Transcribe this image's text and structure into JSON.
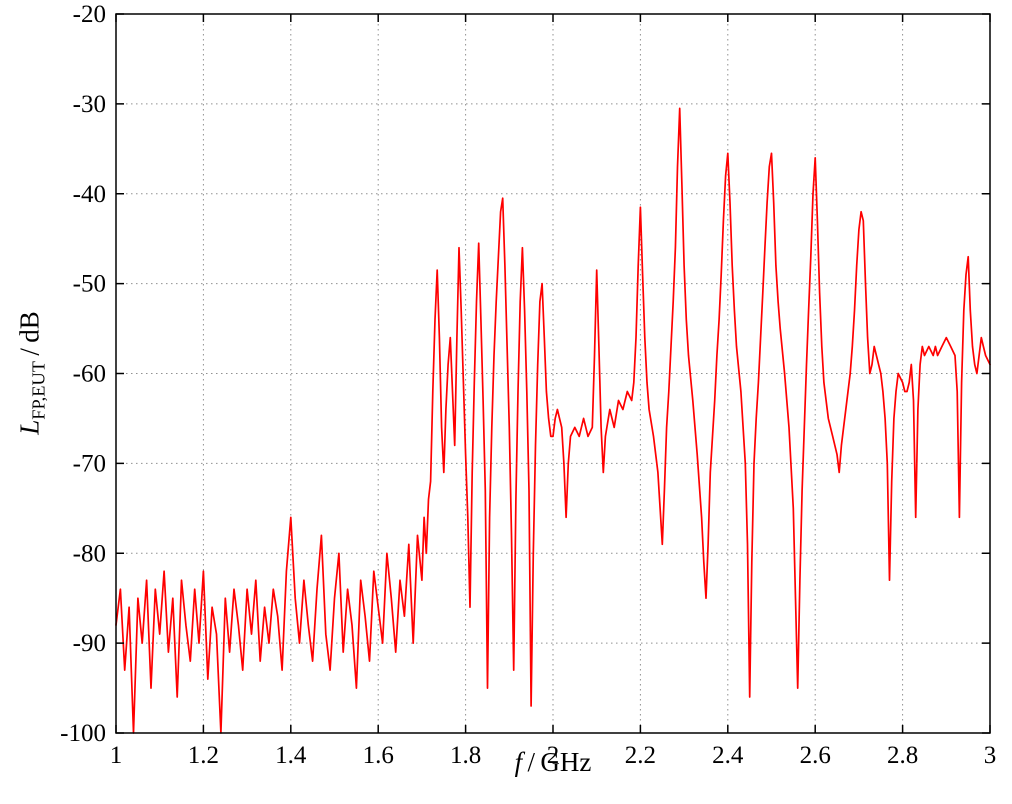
{
  "labels": {
    "y_main": "L",
    "y_sub": "FP,EUT",
    "y_unit": " / dB",
    "x_italic": "f",
    "x_unit": " / GHz"
  },
  "chart_data": {
    "type": "line",
    "title": "",
    "xlabel": "f / GHz",
    "ylabel": "L_FP,EUT / dB",
    "xlim": [
      1,
      3
    ],
    "ylim": [
      -100,
      -20
    ],
    "x_ticks": [
      1,
      1.2,
      1.4,
      1.6,
      1.8,
      2,
      2.2,
      2.4,
      2.6,
      2.8,
      3
    ],
    "x_tick_labels": [
      "1",
      "1.2",
      "1.4",
      "1.6",
      "1.8",
      "2",
      "2.2",
      "2.4",
      "2.6",
      "2.8",
      "3"
    ],
    "y_ticks": [
      -100,
      -90,
      -80,
      -70,
      -60,
      -50,
      -40,
      -30,
      -20
    ],
    "y_tick_labels": [
      "-100",
      "-90",
      "-80",
      "-70",
      "-60",
      "-50",
      "-40",
      "-30",
      "-20"
    ],
    "grid": true,
    "legend": "none",
    "line_color": "#ff0000",
    "grid_color": "#909090",
    "frame_color": "#000000",
    "background": "#ffffff",
    "series": [
      {
        "name": "L_FP,EUT",
        "points": [
          [
            1.0,
            -88
          ],
          [
            1.01,
            -84
          ],
          [
            1.02,
            -93
          ],
          [
            1.03,
            -86
          ],
          [
            1.04,
            -100
          ],
          [
            1.05,
            -85
          ],
          [
            1.06,
            -90
          ],
          [
            1.07,
            -83
          ],
          [
            1.08,
            -95
          ],
          [
            1.09,
            -84
          ],
          [
            1.1,
            -89
          ],
          [
            1.11,
            -82
          ],
          [
            1.12,
            -91
          ],
          [
            1.13,
            -85
          ],
          [
            1.14,
            -96
          ],
          [
            1.15,
            -83
          ],
          [
            1.16,
            -88
          ],
          [
            1.17,
            -92
          ],
          [
            1.18,
            -84
          ],
          [
            1.19,
            -90
          ],
          [
            1.2,
            -82
          ],
          [
            1.21,
            -94
          ],
          [
            1.22,
            -86
          ],
          [
            1.23,
            -89
          ],
          [
            1.24,
            -100
          ],
          [
            1.25,
            -85
          ],
          [
            1.26,
            -91
          ],
          [
            1.27,
            -84
          ],
          [
            1.28,
            -88
          ],
          [
            1.29,
            -93
          ],
          [
            1.3,
            -84
          ],
          [
            1.31,
            -89
          ],
          [
            1.32,
            -83
          ],
          [
            1.33,
            -92
          ],
          [
            1.34,
            -86
          ],
          [
            1.35,
            -90
          ],
          [
            1.36,
            -84
          ],
          [
            1.37,
            -87
          ],
          [
            1.38,
            -93
          ],
          [
            1.39,
            -82
          ],
          [
            1.4,
            -76
          ],
          [
            1.41,
            -85
          ],
          [
            1.42,
            -90
          ],
          [
            1.43,
            -83
          ],
          [
            1.44,
            -88
          ],
          [
            1.45,
            -92
          ],
          [
            1.46,
            -84
          ],
          [
            1.47,
            -78
          ],
          [
            1.48,
            -89
          ],
          [
            1.49,
            -93
          ],
          [
            1.5,
            -85
          ],
          [
            1.51,
            -80
          ],
          [
            1.52,
            -91
          ],
          [
            1.53,
            -84
          ],
          [
            1.54,
            -88
          ],
          [
            1.55,
            -95
          ],
          [
            1.56,
            -83
          ],
          [
            1.57,
            -87
          ],
          [
            1.58,
            -92
          ],
          [
            1.59,
            -82
          ],
          [
            1.6,
            -86
          ],
          [
            1.61,
            -90
          ],
          [
            1.62,
            -80
          ],
          [
            1.63,
            -85
          ],
          [
            1.64,
            -91
          ],
          [
            1.65,
            -83
          ],
          [
            1.66,
            -87
          ],
          [
            1.67,
            -79
          ],
          [
            1.68,
            -90
          ],
          [
            1.69,
            -78
          ],
          [
            1.7,
            -83
          ],
          [
            1.705,
            -76
          ],
          [
            1.71,
            -80
          ],
          [
            1.715,
            -74
          ],
          [
            1.72,
            -72
          ],
          [
            1.725,
            -62
          ],
          [
            1.73,
            -54
          ],
          [
            1.735,
            -48.5
          ],
          [
            1.74,
            -56
          ],
          [
            1.745,
            -66
          ],
          [
            1.75,
            -71
          ],
          [
            1.755,
            -64
          ],
          [
            1.76,
            -59
          ],
          [
            1.765,
            -56
          ],
          [
            1.77,
            -62
          ],
          [
            1.775,
            -68
          ],
          [
            1.78,
            -56
          ],
          [
            1.785,
            -46
          ],
          [
            1.79,
            -53
          ],
          [
            1.795,
            -61
          ],
          [
            1.8,
            -69
          ],
          [
            1.805,
            -76
          ],
          [
            1.81,
            -86
          ],
          [
            1.815,
            -71
          ],
          [
            1.82,
            -61
          ],
          [
            1.825,
            -52
          ],
          [
            1.83,
            -45.5
          ],
          [
            1.835,
            -54
          ],
          [
            1.84,
            -63
          ],
          [
            1.845,
            -73
          ],
          [
            1.85,
            -95
          ],
          [
            1.855,
            -76
          ],
          [
            1.86,
            -66
          ],
          [
            1.865,
            -58
          ],
          [
            1.87,
            -52
          ],
          [
            1.875,
            -47
          ],
          [
            1.88,
            -42
          ],
          [
            1.885,
            -40.5
          ],
          [
            1.89,
            -48
          ],
          [
            1.895,
            -57
          ],
          [
            1.9,
            -66
          ],
          [
            1.905,
            -78
          ],
          [
            1.91,
            -93
          ],
          [
            1.915,
            -74
          ],
          [
            1.92,
            -62
          ],
          [
            1.925,
            -52
          ],
          [
            1.93,
            -46
          ],
          [
            1.935,
            -53
          ],
          [
            1.94,
            -62
          ],
          [
            1.945,
            -73
          ],
          [
            1.95,
            -97
          ],
          [
            1.955,
            -80
          ],
          [
            1.96,
            -68
          ],
          [
            1.965,
            -59
          ],
          [
            1.97,
            -52
          ],
          [
            1.975,
            -50
          ],
          [
            1.98,
            -56
          ],
          [
            1.985,
            -62
          ],
          [
            1.99,
            -65
          ],
          [
            1.995,
            -67
          ],
          [
            2.0,
            -67
          ],
          [
            2.005,
            -65
          ],
          [
            2.01,
            -64
          ],
          [
            2.02,
            -66
          ],
          [
            2.025,
            -70
          ],
          [
            2.03,
            -76
          ],
          [
            2.035,
            -70
          ],
          [
            2.04,
            -67
          ],
          [
            2.05,
            -66
          ],
          [
            2.06,
            -67
          ],
          [
            2.07,
            -65
          ],
          [
            2.08,
            -67
          ],
          [
            2.09,
            -66
          ],
          [
            2.095,
            -58
          ],
          [
            2.1,
            -48.5
          ],
          [
            2.105,
            -57
          ],
          [
            2.11,
            -66
          ],
          [
            2.115,
            -71
          ],
          [
            2.12,
            -67
          ],
          [
            2.13,
            -64
          ],
          [
            2.14,
            -66
          ],
          [
            2.15,
            -63
          ],
          [
            2.16,
            -64
          ],
          [
            2.17,
            -62
          ],
          [
            2.18,
            -63
          ],
          [
            2.185,
            -61
          ],
          [
            2.19,
            -56
          ],
          [
            2.195,
            -48
          ],
          [
            2.2,
            -41.5
          ],
          [
            2.205,
            -49
          ],
          [
            2.21,
            -56
          ],
          [
            2.215,
            -61
          ],
          [
            2.22,
            -64
          ],
          [
            2.23,
            -67
          ],
          [
            2.24,
            -71
          ],
          [
            2.245,
            -75
          ],
          [
            2.25,
            -79
          ],
          [
            2.255,
            -73
          ],
          [
            2.26,
            -66
          ],
          [
            2.265,
            -62
          ],
          [
            2.27,
            -57
          ],
          [
            2.275,
            -52
          ],
          [
            2.28,
            -46
          ],
          [
            2.285,
            -37
          ],
          [
            2.29,
            -30.5
          ],
          [
            2.295,
            -39
          ],
          [
            2.3,
            -48
          ],
          [
            2.305,
            -54
          ],
          [
            2.31,
            -58
          ],
          [
            2.32,
            -63
          ],
          [
            2.33,
            -69
          ],
          [
            2.34,
            -76
          ],
          [
            2.345,
            -81
          ],
          [
            2.35,
            -85
          ],
          [
            2.355,
            -79
          ],
          [
            2.36,
            -71
          ],
          [
            2.37,
            -63
          ],
          [
            2.375,
            -58
          ],
          [
            2.38,
            -54
          ],
          [
            2.385,
            -49
          ],
          [
            2.39,
            -43
          ],
          [
            2.395,
            -38
          ],
          [
            2.4,
            -35.5
          ],
          [
            2.405,
            -41
          ],
          [
            2.41,
            -48
          ],
          [
            2.415,
            -53
          ],
          [
            2.42,
            -57
          ],
          [
            2.43,
            -62
          ],
          [
            2.44,
            -70
          ],
          [
            2.445,
            -79
          ],
          [
            2.45,
            -96
          ],
          [
            2.455,
            -81
          ],
          [
            2.46,
            -70
          ],
          [
            2.465,
            -65
          ],
          [
            2.47,
            -61
          ],
          [
            2.475,
            -56
          ],
          [
            2.48,
            -51
          ],
          [
            2.485,
            -46
          ],
          [
            2.49,
            -41
          ],
          [
            2.495,
            -37
          ],
          [
            2.5,
            -35.5
          ],
          [
            2.505,
            -41
          ],
          [
            2.51,
            -48
          ],
          [
            2.515,
            -52
          ],
          [
            2.52,
            -55
          ],
          [
            2.53,
            -60
          ],
          [
            2.54,
            -66
          ],
          [
            2.55,
            -75
          ],
          [
            2.555,
            -85
          ],
          [
            2.56,
            -95
          ],
          [
            2.565,
            -83
          ],
          [
            2.57,
            -73
          ],
          [
            2.575,
            -66
          ],
          [
            2.58,
            -59
          ],
          [
            2.585,
            -53
          ],
          [
            2.59,
            -47
          ],
          [
            2.595,
            -40
          ],
          [
            2.6,
            -36
          ],
          [
            2.605,
            -43
          ],
          [
            2.61,
            -51
          ],
          [
            2.615,
            -57
          ],
          [
            2.62,
            -61
          ],
          [
            2.63,
            -65
          ],
          [
            2.64,
            -67
          ],
          [
            2.65,
            -69
          ],
          [
            2.655,
            -71
          ],
          [
            2.66,
            -68
          ],
          [
            2.665,
            -66
          ],
          [
            2.67,
            -64
          ],
          [
            2.675,
            -62
          ],
          [
            2.68,
            -60
          ],
          [
            2.685,
            -57
          ],
          [
            2.69,
            -53
          ],
          [
            2.695,
            -48
          ],
          [
            2.7,
            -44
          ],
          [
            2.705,
            -42
          ],
          [
            2.71,
            -43
          ],
          [
            2.715,
            -50
          ],
          [
            2.72,
            -56
          ],
          [
            2.725,
            -60
          ],
          [
            2.73,
            -59
          ],
          [
            2.735,
            -57
          ],
          [
            2.74,
            -58
          ],
          [
            2.75,
            -60
          ],
          [
            2.755,
            -62
          ],
          [
            2.76,
            -65
          ],
          [
            2.765,
            -70
          ],
          [
            2.77,
            -83
          ],
          [
            2.775,
            -72
          ],
          [
            2.78,
            -65
          ],
          [
            2.785,
            -62
          ],
          [
            2.79,
            -60
          ],
          [
            2.8,
            -61
          ],
          [
            2.805,
            -62
          ],
          [
            2.81,
            -62
          ],
          [
            2.815,
            -61
          ],
          [
            2.82,
            -59
          ],
          [
            2.825,
            -63
          ],
          [
            2.83,
            -76
          ],
          [
            2.835,
            -64
          ],
          [
            2.84,
            -59
          ],
          [
            2.845,
            -57
          ],
          [
            2.85,
            -58
          ],
          [
            2.86,
            -57
          ],
          [
            2.87,
            -58
          ],
          [
            2.875,
            -57
          ],
          [
            2.88,
            -58
          ],
          [
            2.89,
            -57
          ],
          [
            2.9,
            -56
          ],
          [
            2.91,
            -57
          ],
          [
            2.92,
            -58
          ],
          [
            2.925,
            -62
          ],
          [
            2.93,
            -76
          ],
          [
            2.935,
            -61
          ],
          [
            2.94,
            -53
          ],
          [
            2.945,
            -49
          ],
          [
            2.95,
            -47
          ],
          [
            2.955,
            -53
          ],
          [
            2.96,
            -57
          ],
          [
            2.965,
            -59
          ],
          [
            2.97,
            -60
          ],
          [
            2.975,
            -58
          ],
          [
            2.98,
            -56
          ],
          [
            2.985,
            -57
          ],
          [
            2.99,
            -58
          ],
          [
            3.0,
            -59
          ]
        ]
      }
    ]
  }
}
